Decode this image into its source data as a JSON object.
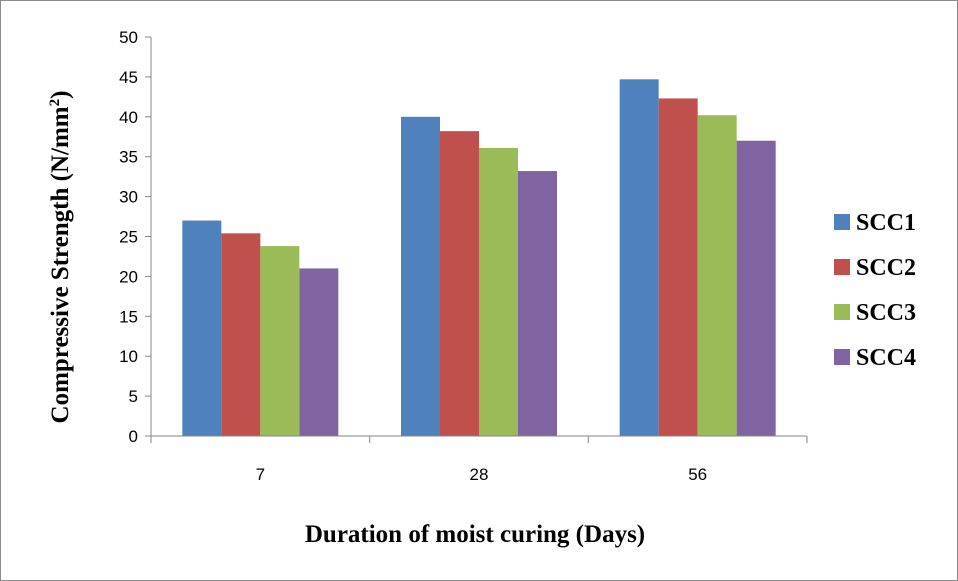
{
  "chart_data": {
    "type": "bar",
    "categories": [
      "7",
      "28",
      "56"
    ],
    "series": [
      {
        "name": "SCC1",
        "values": [
          27.0,
          40.0,
          44.7
        ],
        "color": "#4F81BD"
      },
      {
        "name": "SCC2",
        "values": [
          25.4,
          38.2,
          42.3
        ],
        "color": "#C0504D"
      },
      {
        "name": "SCC3",
        "values": [
          23.8,
          36.1,
          40.2
        ],
        "color": "#9BBB59"
      },
      {
        "name": "SCC4",
        "values": [
          21.0,
          33.2,
          37.0
        ],
        "color": "#8064A2"
      }
    ],
    "xlabel": "Duration of moist curing (Days)",
    "ylabel": {
      "main": "Compressive Strength (N/mm",
      "superscript": "2",
      "close": ")"
    },
    "ylim": [
      0,
      50
    ],
    "yticks": [
      "0",
      "5",
      "10",
      "15",
      "20",
      "25",
      "30",
      "35",
      "40",
      "45",
      "50"
    ],
    "grid": false,
    "legend_position": "right"
  }
}
